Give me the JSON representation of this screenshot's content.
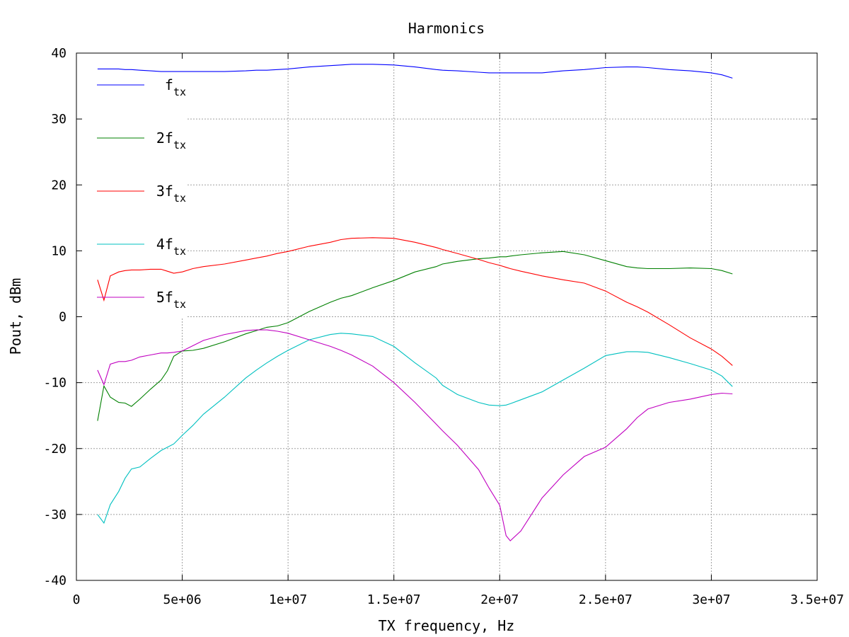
{
  "chart_data": {
    "type": "line",
    "title": "Harmonics",
    "xlabel": "TX frequency, Hz",
    "ylabel": "Pout, dBm",
    "xlim": [
      0,
      35000000
    ],
    "ylim": [
      -40,
      40
    ],
    "x_ticks": [
      0,
      5000000,
      10000000,
      15000000,
      20000000,
      25000000,
      30000000,
      35000000
    ],
    "x_tick_labels": [
      "0",
      "5e+06",
      "1e+07",
      "1.5e+07",
      "2e+07",
      "2.5e+07",
      "3e+07",
      "3.5e+07"
    ],
    "y_ticks": [
      -40,
      -30,
      -20,
      -10,
      0,
      10,
      20,
      30,
      40
    ],
    "y_tick_labels": [
      "-40",
      "-30",
      "-20",
      "-10",
      "0",
      "10",
      "20",
      "30",
      "40"
    ],
    "grid": true,
    "legend_position": "top-left",
    "x": [
      1000000,
      1300000,
      1600000,
      2000000,
      2300000,
      2600000,
      3000000,
      3500000,
      4000000,
      4300000,
      4600000,
      5000000,
      5500000,
      6000000,
      7000000,
      8000000,
      8500000,
      9000000,
      9500000,
      10000000,
      11000000,
      12000000,
      12500000,
      13000000,
      14000000,
      15000000,
      16000000,
      17000000,
      17300000,
      18000000,
      19000000,
      19500000,
      20000000,
      20300000,
      20500000,
      21000000,
      22000000,
      23000000,
      24000000,
      25000000,
      26000000,
      26500000,
      27000000,
      28000000,
      29000000,
      30000000,
      30500000,
      31000000
    ],
    "series": [
      {
        "name": "f",
        "name_sub": "tx",
        "color": "#0000ff",
        "values": [
          37.6,
          37.6,
          37.6,
          37.6,
          37.5,
          37.5,
          37.4,
          37.3,
          37.2,
          37.2,
          37.2,
          37.2,
          37.2,
          37.2,
          37.2,
          37.3,
          37.4,
          37.4,
          37.5,
          37.6,
          37.9,
          38.1,
          38.2,
          38.3,
          38.3,
          38.2,
          37.9,
          37.5,
          37.4,
          37.3,
          37.1,
          37.0,
          37.0,
          37.0,
          37.0,
          37.0,
          37.0,
          37.3,
          37.5,
          37.8,
          37.9,
          37.9,
          37.8,
          37.5,
          37.3,
          37.0,
          36.7,
          36.2
        ]
      },
      {
        "name": "2f",
        "name_sub": "tx",
        "color": "#008000",
        "values": [
          -15.8,
          -10.5,
          -12.2,
          -13.0,
          -13.1,
          -13.6,
          -12.5,
          -11.0,
          -9.6,
          -8.2,
          -6.0,
          -5.2,
          -5.1,
          -4.8,
          -3.8,
          -2.6,
          -2.1,
          -1.6,
          -1.4,
          -0.9,
          0.8,
          2.2,
          2.8,
          3.2,
          4.4,
          5.5,
          6.8,
          7.6,
          8.0,
          8.4,
          8.8,
          8.9,
          9.1,
          9.1,
          9.2,
          9.4,
          9.7,
          9.9,
          9.4,
          8.5,
          7.6,
          7.4,
          7.3,
          7.3,
          7.4,
          7.3,
          7.0,
          6.5
        ]
      },
      {
        "name": "3f",
        "name_sub": "tx",
        "color": "#ff0000",
        "values": [
          5.6,
          2.5,
          6.2,
          6.8,
          7.0,
          7.1,
          7.1,
          7.2,
          7.2,
          6.9,
          6.6,
          6.8,
          7.3,
          7.6,
          8.0,
          8.6,
          8.9,
          9.2,
          9.6,
          9.9,
          10.7,
          11.3,
          11.7,
          11.9,
          12.0,
          11.9,
          11.3,
          10.5,
          10.2,
          9.6,
          8.7,
          8.2,
          7.8,
          7.5,
          7.3,
          6.9,
          6.2,
          5.6,
          5.1,
          3.9,
          2.2,
          1.5,
          0.7,
          -1.2,
          -3.2,
          -4.9,
          -6.0,
          -7.4
        ]
      },
      {
        "name": "4f",
        "name_sub": "tx",
        "color": "#00c0c0",
        "values": [
          -30.0,
          -31.3,
          -28.5,
          -26.5,
          -24.5,
          -23.1,
          -22.8,
          -21.5,
          -20.3,
          -19.8,
          -19.3,
          -18.0,
          -16.5,
          -14.8,
          -12.2,
          -9.3,
          -8.1,
          -7.0,
          -6.0,
          -5.1,
          -3.5,
          -2.7,
          -2.5,
          -2.6,
          -3.0,
          -4.5,
          -7.0,
          -9.3,
          -10.4,
          -11.8,
          -13.0,
          -13.4,
          -13.5,
          -13.4,
          -13.2,
          -12.6,
          -11.4,
          -9.6,
          -7.8,
          -5.9,
          -5.3,
          -5.3,
          -5.4,
          -6.2,
          -7.1,
          -8.1,
          -9.0,
          -10.6
        ]
      },
      {
        "name": "5f",
        "name_sub": "tx",
        "color": "#c000c0",
        "values": [
          -8.1,
          -10.3,
          -7.2,
          -6.8,
          -6.8,
          -6.6,
          -6.1,
          -5.8,
          -5.5,
          -5.5,
          -5.4,
          -5.2,
          -4.4,
          -3.6,
          -2.7,
          -2.1,
          -2.0,
          -2.0,
          -2.2,
          -2.5,
          -3.5,
          -4.5,
          -5.1,
          -5.8,
          -7.5,
          -10.0,
          -13.0,
          -16.3,
          -17.3,
          -19.5,
          -23.2,
          -26.0,
          -28.6,
          -33.2,
          -34.0,
          -32.5,
          -27.5,
          -24.0,
          -21.2,
          -19.8,
          -17.0,
          -15.3,
          -14.0,
          -13.0,
          -12.5,
          -11.8,
          -11.6,
          -11.7
        ]
      }
    ]
  }
}
